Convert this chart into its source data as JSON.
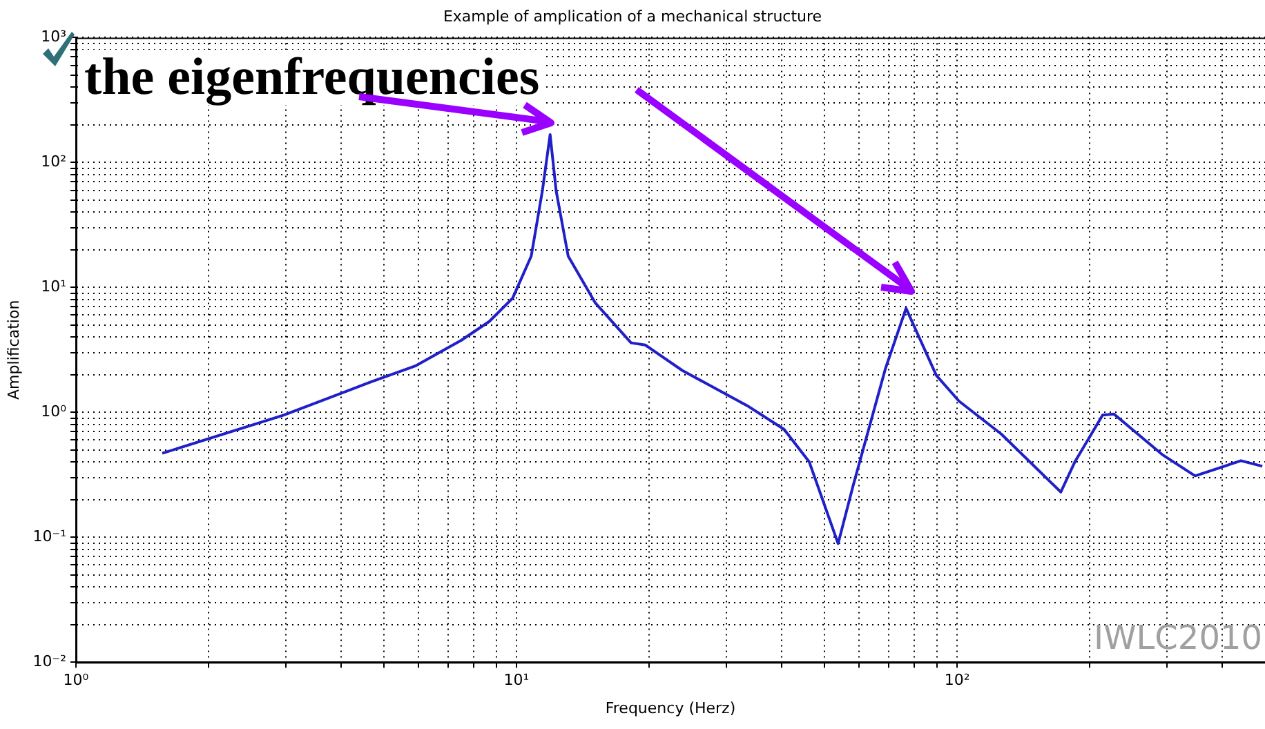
{
  "chart_data": {
    "type": "line",
    "title": "Example of amplication of a mechanical structure",
    "xlabel": "Frequency (Herz)",
    "ylabel": "Amplification",
    "annotations": [
      "the eigenfrequencies",
      "IWLC2010"
    ],
    "log": "xy",
    "grid": true,
    "legend": false,
    "marker": "none",
    "line_style": "solid",
    "xlim": [
      1,
      500
    ],
    "xticks": [
      {
        "value": 1,
        "label": "10⁰"
      },
      {
        "value": 2,
        "label": null
      },
      {
        "value": 3,
        "label": null
      },
      {
        "value": 4,
        "label": null
      },
      {
        "value": 5,
        "label": null
      },
      {
        "value": 6,
        "label": null
      },
      {
        "value": 7,
        "label": null
      },
      {
        "value": 8,
        "label": null
      },
      {
        "value": 9,
        "label": null
      },
      {
        "value": 10,
        "label": "10¹"
      },
      {
        "value": 20,
        "label": null
      },
      {
        "value": 30,
        "label": null
      },
      {
        "value": 40,
        "label": null
      },
      {
        "value": 50,
        "label": null
      },
      {
        "value": 60,
        "label": null
      },
      {
        "value": 70,
        "label": null
      },
      {
        "value": 80,
        "label": null
      },
      {
        "value": 90,
        "label": null
      },
      {
        "value": 100,
        "label": "10²"
      },
      {
        "value": 200,
        "label": null
      },
      {
        "value": 300,
        "label": null
      },
      {
        "value": 400,
        "label": null
      }
    ],
    "ylim": [
      0.01,
      1000
    ],
    "yticks": [
      {
        "value": 0.01,
        "label": "10⁻²"
      },
      {
        "value": 0.02,
        "label": null
      },
      {
        "value": 0.03,
        "label": null
      },
      {
        "value": 0.04,
        "label": null
      },
      {
        "value": 0.05,
        "label": null
      },
      {
        "value": 0.06,
        "label": null
      },
      {
        "value": 0.07,
        "label": null
      },
      {
        "value": 0.08,
        "label": null
      },
      {
        "value": 0.09,
        "label": null
      },
      {
        "value": 0.1,
        "label": "10⁻¹"
      },
      {
        "value": 0.2,
        "label": null
      },
      {
        "value": 0.3,
        "label": null
      },
      {
        "value": 0.4,
        "label": null
      },
      {
        "value": 0.5,
        "label": null
      },
      {
        "value": 0.6,
        "label": null
      },
      {
        "value": 0.7,
        "label": null
      },
      {
        "value": 0.8,
        "label": null
      },
      {
        "value": 0.9,
        "label": null
      },
      {
        "value": 1,
        "label": "10⁰"
      },
      {
        "value": 2,
        "label": null
      },
      {
        "value": 3,
        "label": null
      },
      {
        "value": 4,
        "label": null
      },
      {
        "value": 5,
        "label": null
      },
      {
        "value": 6,
        "label": null
      },
      {
        "value": 7,
        "label": null
      },
      {
        "value": 8,
        "label": null
      },
      {
        "value": 9,
        "label": null
      },
      {
        "value": 10,
        "label": "10¹"
      },
      {
        "value": 20,
        "label": null
      },
      {
        "value": 30,
        "label": null
      },
      {
        "value": 40,
        "label": null
      },
      {
        "value": 50,
        "label": null
      },
      {
        "value": 60,
        "label": null
      },
      {
        "value": 70,
        "label": null
      },
      {
        "value": 80,
        "label": null
      },
      {
        "value": 90,
        "label": null
      },
      {
        "value": 100,
        "label": "10²"
      },
      {
        "value": 200,
        "label": null
      },
      {
        "value": 300,
        "label": null
      },
      {
        "value": 400,
        "label": null
      },
      {
        "value": 500,
        "label": null
      },
      {
        "value": 600,
        "label": null
      },
      {
        "value": 700,
        "label": null
      },
      {
        "value": 800,
        "label": null
      },
      {
        "value": 900,
        "label": null
      },
      {
        "value": 1000,
        "label": "10³"
      }
    ],
    "series": [
      {
        "color": "#2020c8",
        "x": [
          1.57,
          2.96,
          4.63,
          5.89,
          7.49,
          8.67,
          9.8,
          10.8,
          11.45,
          11.92,
          12.3,
          13.1,
          15.1,
          18.2,
          19.6,
          23.8,
          33.4,
          40.5,
          46.2,
          53.7,
          58.1,
          68.8,
          76.6,
          89.7,
          101,
          126,
          172,
          185,
          214,
          227,
          292,
          347,
          441,
          493
        ],
        "values": [
          0.47,
          0.95,
          1.73,
          2.35,
          3.77,
          5.33,
          8.2,
          17.8,
          59.6,
          167,
          59.6,
          17.8,
          7.5,
          3.6,
          3.46,
          2.16,
          1.13,
          0.73,
          0.4,
          0.089,
          0.26,
          2.25,
          6.8,
          1.98,
          1.23,
          0.67,
          0.23,
          0.4,
          0.95,
          0.97,
          0.46,
          0.31,
          0.41,
          0.37
        ]
      }
    ]
  }
}
